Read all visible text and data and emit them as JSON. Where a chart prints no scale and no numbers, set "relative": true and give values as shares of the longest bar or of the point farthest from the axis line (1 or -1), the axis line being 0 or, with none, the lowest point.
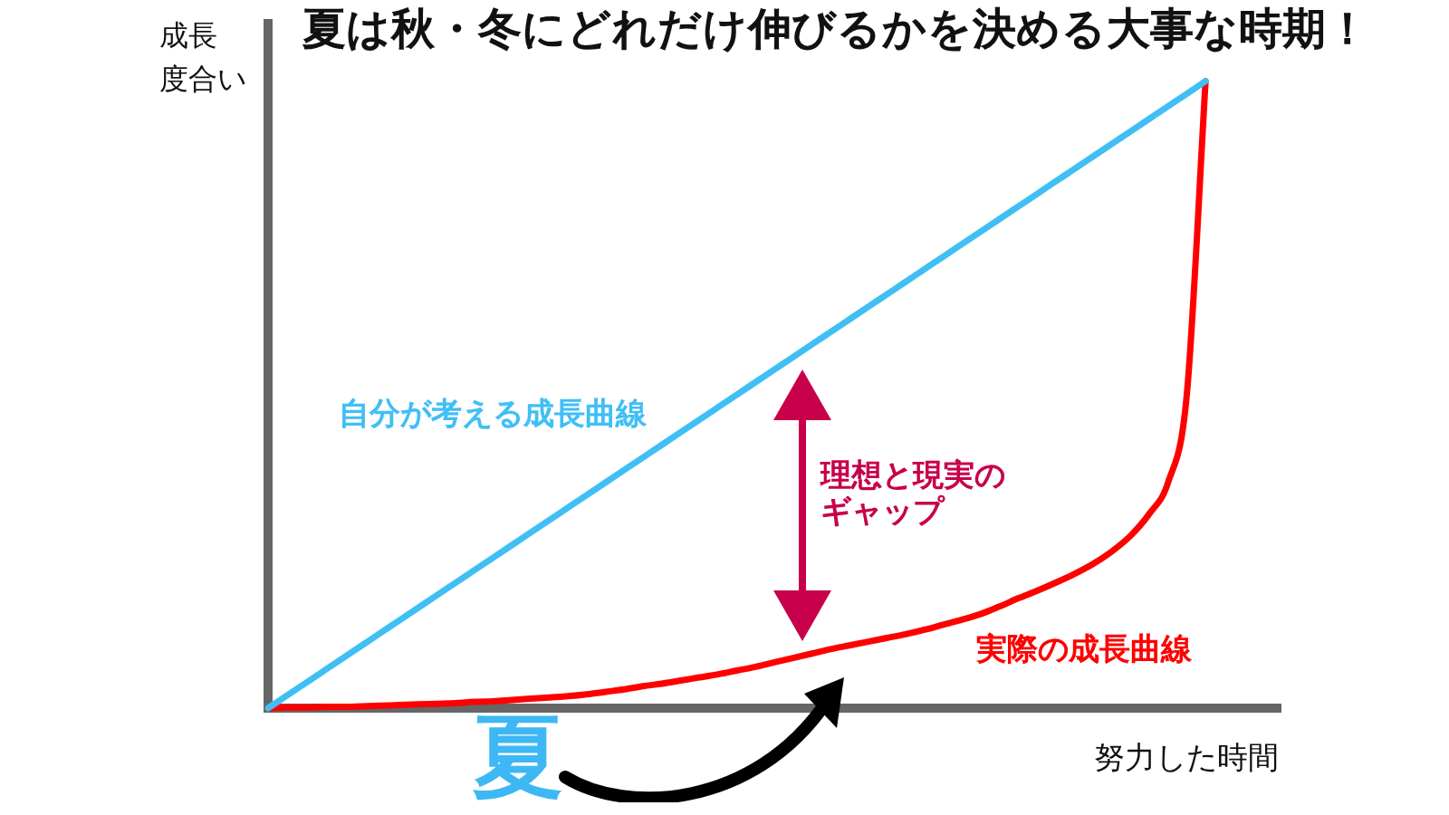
{
  "chart_data": {
    "type": "line",
    "relative": true,
    "title": "夏は秋・冬にどれだけ伸びるかを決める大事な時期！",
    "xlabel": "努力した時間",
    "ylabel": "成長度合い",
    "annotations": [
      "理想と現実のギャップ",
      "夏"
    ],
    "categories": [
      null,
      null,
      null,
      null,
      null,
      null,
      null,
      null,
      null,
      null,
      null,
      null,
      null,
      null,
      null,
      null,
      null,
      null,
      null,
      null,
      null,
      null,
      null,
      null,
      null,
      null,
      null,
      null,
      null,
      null,
      null,
      null,
      null,
      null,
      null,
      null,
      null,
      null,
      null,
      null,
      null,
      null,
      null,
      null,
      null,
      null,
      null,
      null,
      null,
      null,
      null,
      null,
      null,
      null,
      null
    ],
    "series": [
      {
        "name": "自分が考える成長曲線",
        "color": "#40bff5",
        "values": [
          0,
          0.02,
          0.04,
          0.06,
          0.08,
          0.1,
          0.12,
          0.14,
          0.16,
          0.18,
          0.2,
          0.22,
          0.24,
          0.26,
          0.28,
          0.3,
          0.32,
          0.34,
          0.36,
          0.38,
          0.4,
          0.42,
          0.44,
          0.46,
          0.48,
          0.5,
          0.52,
          0.54,
          0.56,
          0.58,
          0.6,
          0.62,
          0.64,
          0.66,
          0.68,
          0.7,
          0.72,
          0.74,
          0.76,
          0.78,
          0.8,
          0.82,
          0.84,
          0.86,
          0.88,
          0.9,
          0.92,
          0.94,
          0.96,
          0.98,
          1,
          null,
          null,
          null,
          null
        ]
      },
      {
        "name": "実際の成長曲線",
        "color": "#ff0000",
        "values": [
          0,
          0.001,
          0.001,
          0.002,
          0.002,
          0.003,
          0.004,
          0.005,
          0.006,
          0.007,
          0.008,
          0.01,
          0.011,
          0.013,
          0.015,
          0.017,
          0.019,
          0.022,
          0.026,
          0.03,
          0.035,
          0.039,
          0.044,
          0.049,
          0.054,
          0.06,
          0.066,
          0.073,
          0.08,
          0.087,
          0.094,
          0.1,
          0.106,
          0.112,
          0.118,
          0.125,
          0.133,
          0.141,
          0.15,
          0.162,
          0.175,
          0.187,
          0.2,
          0.214,
          0.23,
          0.25,
          0.275,
          0.31,
          0.36,
          0.5,
          1,
          null,
          null,
          null,
          null
        ]
      }
    ]
  }
}
